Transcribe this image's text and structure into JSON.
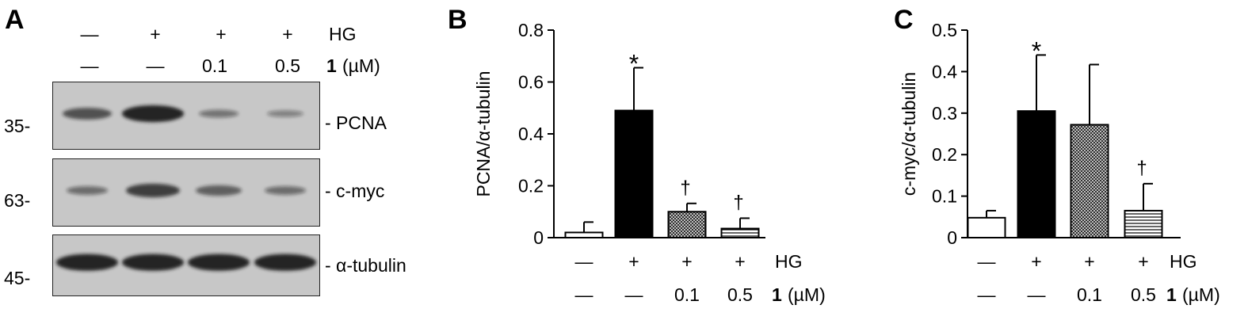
{
  "panel_a": {
    "letter": "A",
    "conditions": {
      "hg_row": [
        "—",
        "+",
        "+",
        "+"
      ],
      "hg_label": "HG",
      "dose_row": [
        "—",
        "—",
        "0.1",
        "0.5"
      ],
      "compound_label": "1",
      "unit_label": "(µM)"
    },
    "blots": [
      {
        "name": "PCNA",
        "label": "- PCNA",
        "mw": "35-",
        "intensity": [
          0.55,
          0.95,
          0.25,
          0.15
        ]
      },
      {
        "name": "c-myc",
        "label": "- c-myc",
        "mw": "63-",
        "intensity": [
          0.3,
          0.7,
          0.45,
          0.3
        ]
      },
      {
        "name": "alpha-tubulin",
        "label": "- α-tubulin",
        "mw": "45-",
        "intensity": [
          0.95,
          0.95,
          0.95,
          0.95
        ]
      }
    ]
  },
  "chart_data": [
    {
      "panel": "B",
      "type": "bar",
      "ylabel": "PCNA/α-tubulin",
      "ylim": [
        0,
        0.8
      ],
      "yticks": [
        "0",
        "0.2",
        "0.4",
        "0.6",
        "0.8"
      ],
      "categories": [
        "1",
        "2",
        "3",
        "4"
      ],
      "values": [
        0.02,
        0.49,
        0.1,
        0.035
      ],
      "errors": [
        0.04,
        0.165,
        0.032,
        0.04
      ],
      "significance": [
        "",
        "*",
        "†",
        "†"
      ],
      "fills": [
        "white",
        "black",
        "crosshatch",
        "hstripes"
      ],
      "hg_row": [
        "—",
        "+",
        "+",
        "+"
      ],
      "hg_label": "HG",
      "dose_row": [
        "—",
        "—",
        "0.1",
        "0.5"
      ],
      "compound_label": "1",
      "unit_label": "(µM)"
    },
    {
      "panel": "C",
      "type": "bar",
      "ylabel": "c-myc/α-tubulin",
      "ylim": [
        0,
        0.5
      ],
      "yticks": [
        "0",
        "0.1",
        "0.2",
        "0.3",
        "0.4",
        "0.5"
      ],
      "categories": [
        "1",
        "2",
        "3",
        "4"
      ],
      "values": [
        0.048,
        0.305,
        0.272,
        0.065
      ],
      "errors": [
        0.017,
        0.135,
        0.145,
        0.065
      ],
      "significance": [
        "",
        "*",
        "",
        "†"
      ],
      "fills": [
        "white",
        "black",
        "crosshatch",
        "hstripes"
      ],
      "hg_row": [
        "—",
        "+",
        "+",
        "+"
      ],
      "hg_label": "HG",
      "dose_row": [
        "—",
        "—",
        "0.1",
        "0.5"
      ],
      "compound_label": "1",
      "unit_label": "(µM)"
    }
  ],
  "colors": {
    "axis": "#000000",
    "blot_bg": "#c7c7c7",
    "band": "#1a1a1a"
  }
}
